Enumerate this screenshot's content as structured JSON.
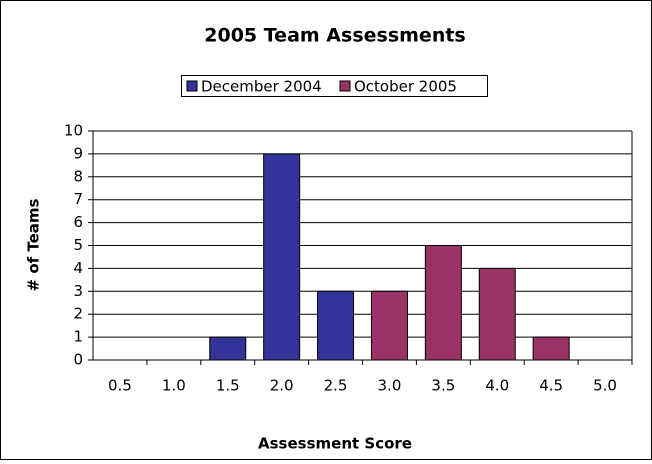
{
  "chart_data": {
    "type": "bar",
    "title": "2005 Team Assessments",
    "x_label": "Assessment Score",
    "y_label": "# of Teams",
    "categories": [
      "0.5",
      "1.0",
      "1.5",
      "2.0",
      "2.5",
      "3.0",
      "3.5",
      "4.0",
      "4.5",
      "5.0"
    ],
    "series": [
      {
        "name": "December 2004",
        "color": "#333399",
        "values": [
          null,
          null,
          1,
          9,
          3,
          null,
          null,
          null,
          null,
          null
        ]
      },
      {
        "name": "October 2005",
        "color": "#993366",
        "values": [
          null,
          null,
          null,
          null,
          null,
          3,
          5,
          4,
          1,
          null
        ]
      }
    ],
    "ylim": [
      0,
      10
    ],
    "yticks": [
      0,
      1,
      2,
      3,
      4,
      5,
      6,
      7,
      8,
      9,
      10
    ],
    "grid": true,
    "legend": "top"
  }
}
